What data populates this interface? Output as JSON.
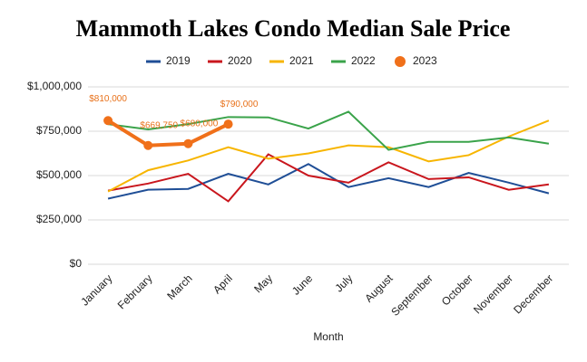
{
  "chart_data": {
    "type": "line",
    "title": "Mammoth Lakes Condo Median Sale Price",
    "x_label": "Month",
    "categories": [
      "January",
      "February",
      "March",
      "April",
      "May",
      "June",
      "July",
      "August",
      "September",
      "October",
      "November",
      "December"
    ],
    "series": [
      {
        "name": "2019",
        "color": "#1f4e96",
        "values": [
          370000,
          420000,
          425000,
          510000,
          450000,
          565000,
          435000,
          485000,
          435000,
          515000,
          460000,
          400000
        ]
      },
      {
        "name": "2020",
        "color": "#c9161d",
        "values": [
          415000,
          455000,
          510000,
          355000,
          620000,
          500000,
          460000,
          575000,
          480000,
          490000,
          420000,
          450000
        ]
      },
      {
        "name": "2021",
        "color": "#f7b500",
        "values": [
          410000,
          530000,
          585000,
          660000,
          595000,
          625000,
          670000,
          660000,
          580000,
          615000,
          720000,
          810000
        ]
      },
      {
        "name": "2022",
        "color": "#3aa34a",
        "values": [
          790000,
          760000,
          790000,
          830000,
          828000,
          765000,
          860000,
          645000,
          690000,
          690000,
          715000,
          680000
        ]
      },
      {
        "name": "2023",
        "color": "#f0701a",
        "values": [
          810000,
          669750,
          680000,
          790000,
          null,
          null,
          null,
          null,
          null,
          null,
          null,
          null
        ],
        "value_labels": [
          "$810,000",
          "$669,750",
          "$680,000",
          "$790,000",
          null,
          null,
          null,
          null,
          null,
          null,
          null,
          null
        ]
      }
    ],
    "ylim": [
      0,
      1000000
    ],
    "yticks": [
      {
        "value": 0,
        "label": "$0"
      },
      {
        "value": 250000,
        "label": "$250,000"
      },
      {
        "value": 500000,
        "label": "$500,000"
      },
      {
        "value": 750000,
        "label": "$750,000"
      },
      {
        "value": 1000000,
        "label": "$1,000,000"
      }
    ],
    "grid": true,
    "legend": "top"
  }
}
